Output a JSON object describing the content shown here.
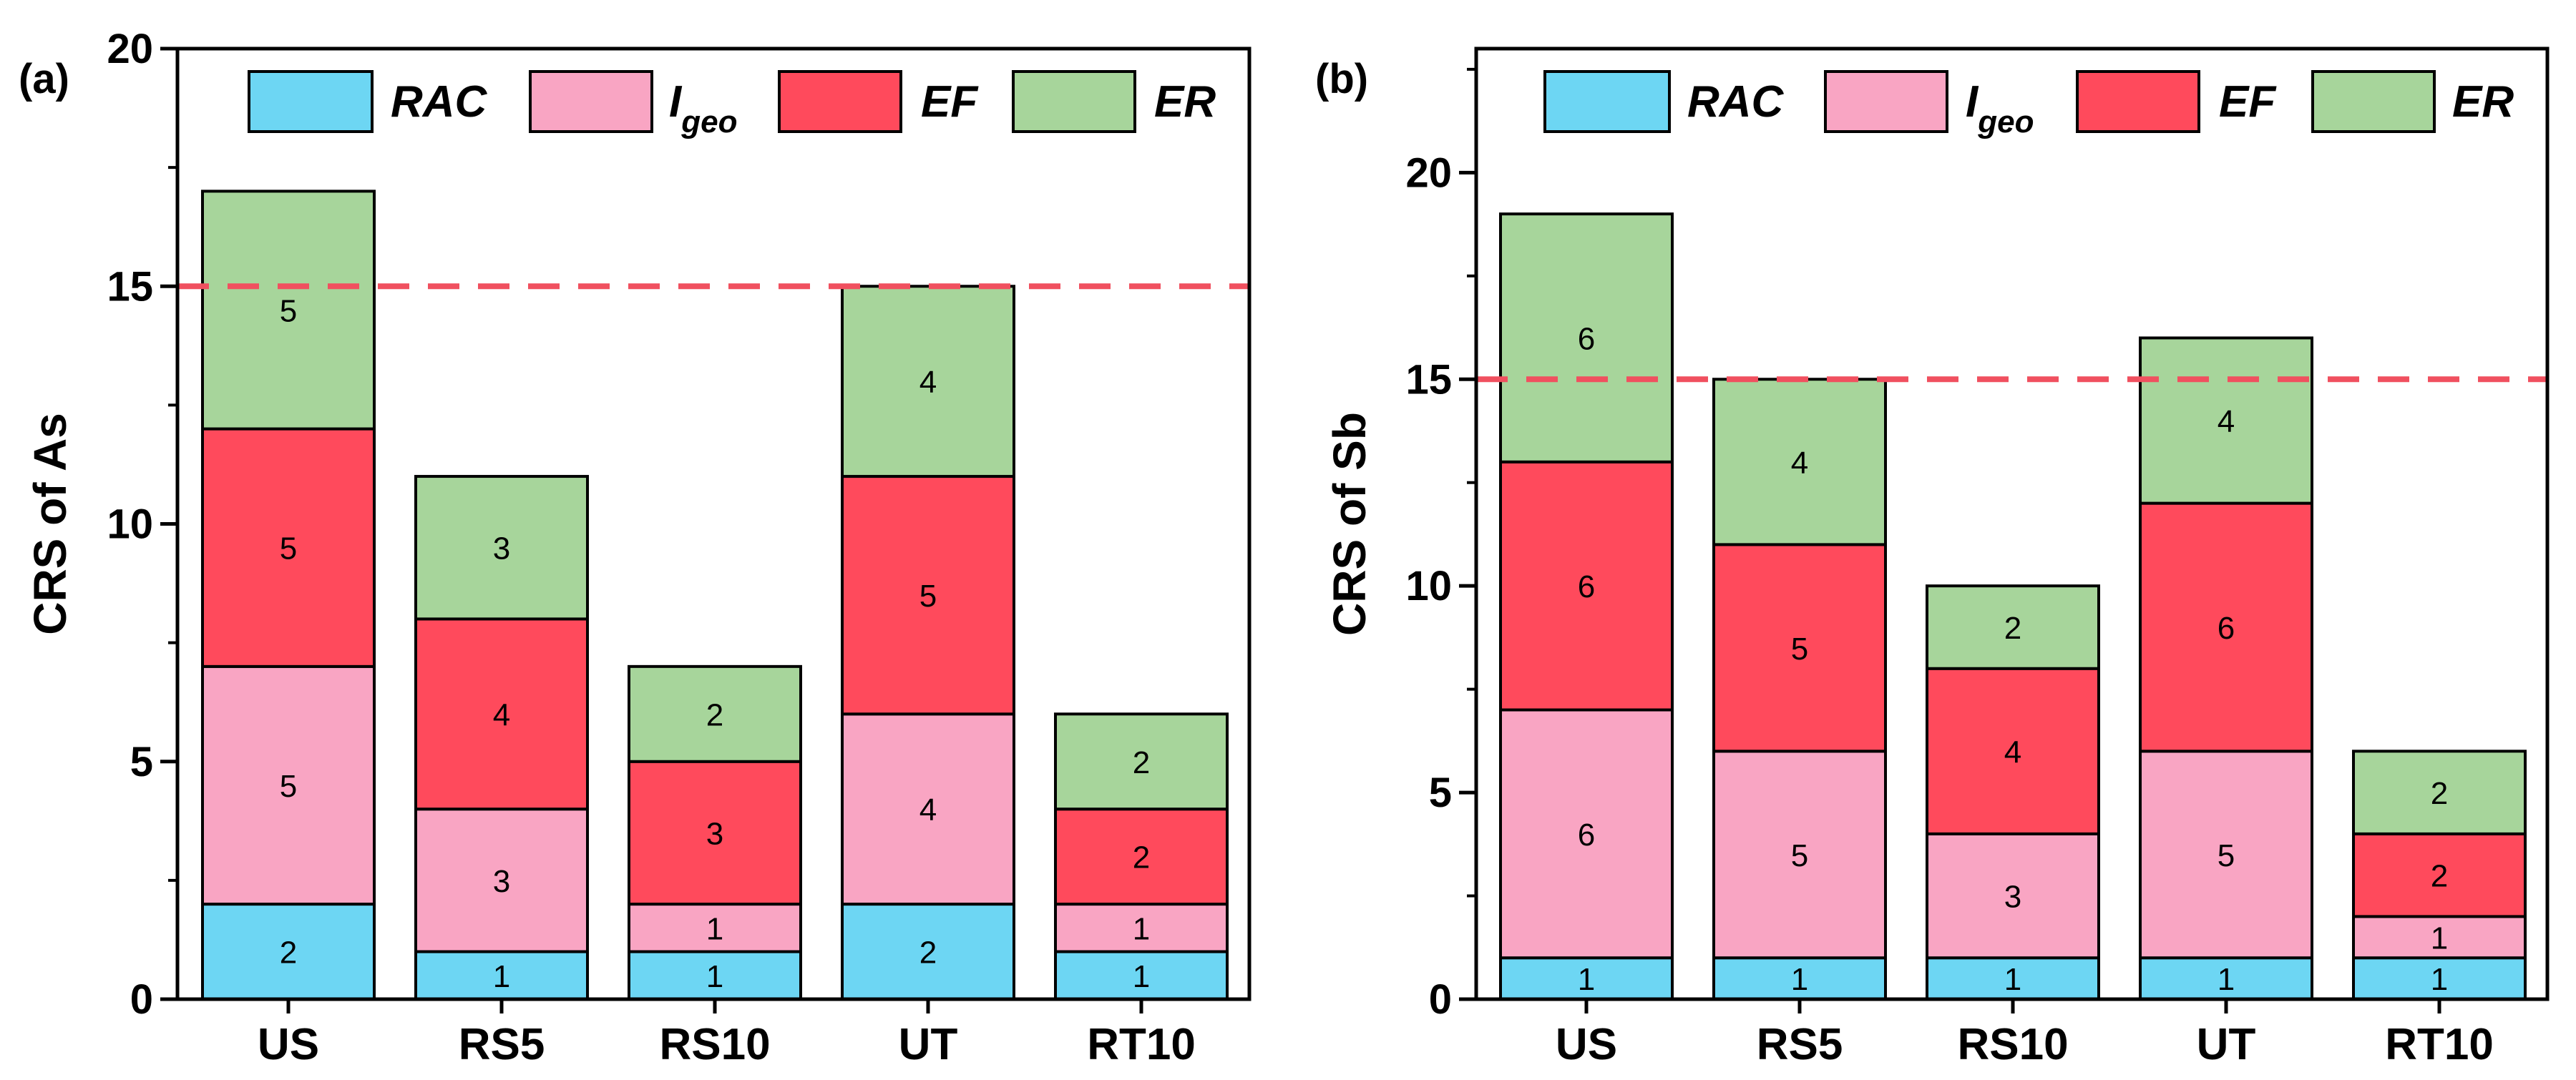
{
  "chart_data": [
    {
      "type": "bar",
      "stacked": true,
      "panel_label": "(a)",
      "ylabel": "CRS of As",
      "xlabel": "",
      "categories": [
        "US",
        "RS5",
        "RS10",
        "UT",
        "RT10"
      ],
      "ylim": [
        0,
        20
      ],
      "yticks": [
        0,
        5,
        10,
        15,
        20
      ],
      "reference_line": {
        "y": 15,
        "style": "dashed",
        "color": "#f0505f"
      },
      "legend_position": "top",
      "series": [
        {
          "name": "RAC",
          "label_main": "RAC",
          "label_sub": "",
          "color": "#6dd6f3",
          "values": [
            2,
            1,
            1,
            2,
            1
          ]
        },
        {
          "name": "Igeo",
          "label_main": "I",
          "label_sub": "geo",
          "color": "#f9a5c3",
          "values": [
            5,
            3,
            1,
            4,
            1
          ]
        },
        {
          "name": "EF",
          "label_main": "EF",
          "label_sub": "",
          "color": "#ff4a5c",
          "values": [
            5,
            4,
            3,
            5,
            2
          ]
        },
        {
          "name": "ER",
          "label_main": "ER",
          "label_sub": "",
          "color": "#a7d59b",
          "values": [
            5,
            3,
            2,
            4,
            2
          ]
        }
      ]
    },
    {
      "type": "bar",
      "stacked": true,
      "panel_label": "(b)",
      "ylabel": "CRS of Sb",
      "xlabel": "",
      "categories": [
        "US",
        "RS5",
        "RS10",
        "UT",
        "RT10"
      ],
      "ylim": [
        0,
        23
      ],
      "yticks": [
        0,
        5,
        10,
        15,
        20
      ],
      "reference_line": {
        "y": 15,
        "style": "dashed",
        "color": "#f0505f"
      },
      "legend_position": "top",
      "series": [
        {
          "name": "RAC",
          "label_main": "RAC",
          "label_sub": "",
          "color": "#6dd6f3",
          "values": [
            1,
            1,
            1,
            1,
            1
          ]
        },
        {
          "name": "Igeo",
          "label_main": "I",
          "label_sub": "geo",
          "color": "#f9a5c3",
          "values": [
            6,
            5,
            3,
            5,
            1
          ]
        },
        {
          "name": "EF",
          "label_main": "EF",
          "label_sub": "",
          "color": "#ff4a5c",
          "values": [
            6,
            5,
            4,
            6,
            2
          ]
        },
        {
          "name": "ER",
          "label_main": "ER",
          "label_sub": "",
          "color": "#a7d59b",
          "values": [
            6,
            4,
            2,
            4,
            2
          ]
        }
      ]
    }
  ]
}
